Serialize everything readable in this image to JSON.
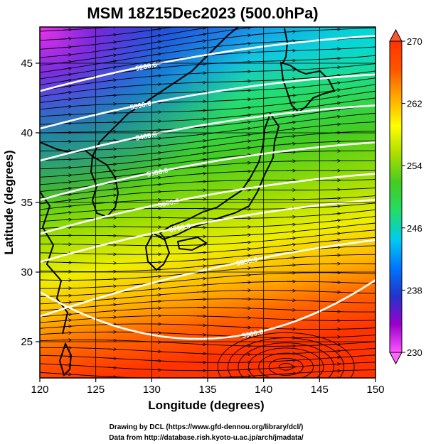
{
  "title": "MSM 18Z15Dec2023 (500.0hPa)",
  "x_axis": {
    "label": "Longitude (degrees)",
    "range": [
      120,
      150
    ],
    "ticks": [
      "120",
      "125",
      "130",
      "135",
      "140",
      "145",
      "150"
    ]
  },
  "y_axis": {
    "label": "Latitude  (degrees)",
    "range": [
      22.4,
      47.6
    ],
    "ticks": [
      "25",
      "30",
      "35",
      "40",
      "45"
    ]
  },
  "colorbar": {
    "range": [
      230,
      270
    ],
    "ticks": [
      "230",
      "238",
      "246",
      "254",
      "262",
      "270"
    ],
    "colors": [
      "#ff55ff",
      "#9900cc",
      "#2233cc",
      "#0077ff",
      "#00ccee",
      "#22dd66",
      "#44cc22",
      "#aadd00",
      "#ffff00",
      "#ffaa00",
      "#ff5500",
      "#ff3300"
    ]
  },
  "contours": [
    {
      "label": "5200.0",
      "label_pos": {
        "lon": 129.5,
        "lat": 44.8
      }
    },
    {
      "label": "5300.0",
      "label_pos": {
        "lon": 129.0,
        "lat": 42.0
      }
    },
    {
      "label": "5400.0",
      "label_pos": {
        "lon": 129.5,
        "lat": 39.8
      }
    },
    {
      "label": "5500.0",
      "label_pos": {
        "lon": 130.5,
        "lat": 37.2
      }
    },
    {
      "label": "5600.0",
      "label_pos": {
        "lon": 131.5,
        "lat": 35.0
      }
    },
    {
      "label": "5700.0",
      "label_pos": {
        "lon": 132.5,
        "lat": 33.2
      }
    },
    {
      "label": "5800.0",
      "label_pos": {
        "lon": 138.5,
        "lat": 30.8
      }
    },
    {
      "label": "5900.0",
      "label_pos": {
        "lon": 139.0,
        "lat": 25.6
      }
    }
  ],
  "credits": [
    "Drawing by DCL (https://www.gfd-dennou.org/library/dcl/)",
    "Data from http://database.rish.kyoto-u.ac.jp/arch/jmadata/"
  ]
}
